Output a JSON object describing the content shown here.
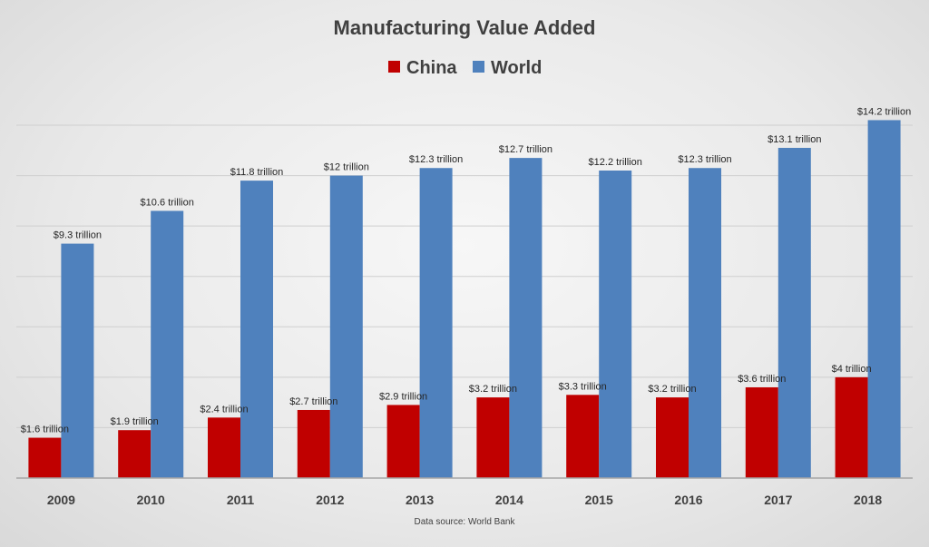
{
  "chart_data": {
    "type": "bar",
    "title": "Manufacturing Value Added",
    "categories": [
      "2009",
      "2010",
      "2011",
      "2012",
      "2013",
      "2014",
      "2015",
      "2016",
      "2017",
      "2018"
    ],
    "series": [
      {
        "name": "China",
        "color": "#c00000",
        "values": [
          1.6,
          1.9,
          2.4,
          2.7,
          2.9,
          3.2,
          3.3,
          3.2,
          3.6,
          4
        ],
        "labels": [
          "$1.6 trillion",
          "$1.9 trillion",
          "$2.4 trillion",
          "$2.7 trillion",
          "$2.9 trillion",
          "$3.2 trillion",
          "$3.3 trillion",
          "$3.2 trillion",
          "$3.6 trillion",
          "$4 trillion"
        ]
      },
      {
        "name": "World",
        "color": "#4f81bd",
        "values": [
          9.3,
          10.6,
          11.8,
          12,
          12.3,
          12.7,
          12.2,
          12.3,
          13.1,
          14.2
        ],
        "labels": [
          "$9.3 trillion",
          "$10.6 trillion",
          "$11.8 trillion",
          "$12 trillion",
          "$12.3 trillion",
          "$12.7 trillion",
          "$12.2 trillion",
          "$12.3 trillion",
          "$13.1 trillion",
          "$14.2 trillion"
        ]
      }
    ],
    "xlabel": "",
    "ylabel": "",
    "ylim": [
      0,
      14
    ],
    "grid": true,
    "legend": "top-center",
    "source": "Data source:  World Bank"
  }
}
